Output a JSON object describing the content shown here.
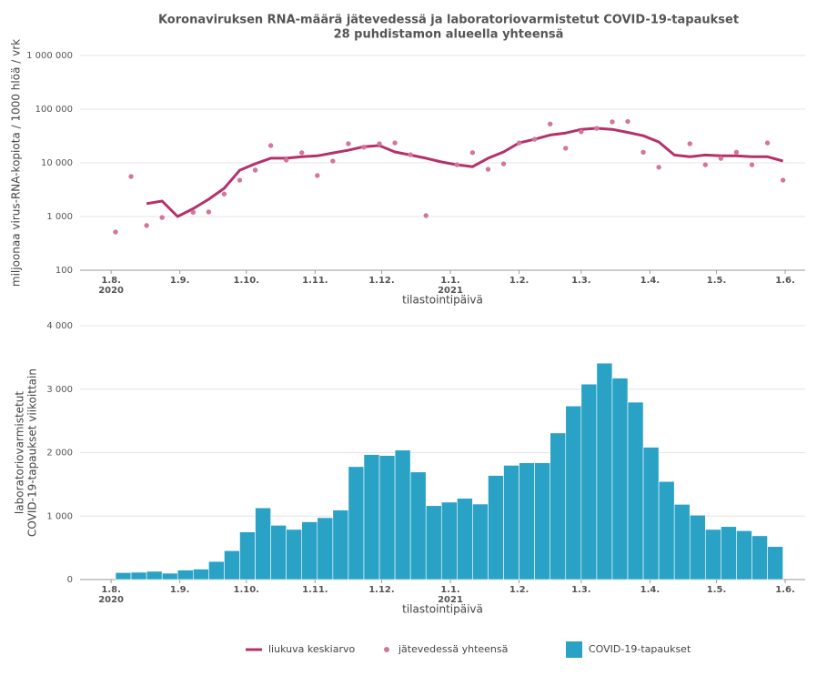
{
  "chart_data": [
    {
      "type": "line",
      "title": "Koronaviruksen RNA-määrä jätevedessä ja laboratoriovarmistetut COVID-19-tapaukset",
      "subtitle": "28 puhdistamon alueella yhteensä",
      "x_label": "tilastointipäivä",
      "y_label": "miljoonaa virus-RNA-kopiota / 1000 hlöä / vrk",
      "log_y": true,
      "grid": true,
      "xlim": [
        "2020-07-18",
        "2021-06-10"
      ],
      "xticks": [
        {
          "value": "2020-08-01",
          "label": "1.8."
        },
        {
          "value": "2020-09-01",
          "label": "1.9."
        },
        {
          "value": "2020-10-01",
          "label": "1.10."
        },
        {
          "value": "2020-11-01",
          "label": "1.11."
        },
        {
          "value": "2020-12-01",
          "label": "1.12."
        },
        {
          "value": "2021-01-01",
          "label": "1.1."
        },
        {
          "value": "2021-02-01",
          "label": "1.2."
        },
        {
          "value": "2021-03-01",
          "label": "1.3."
        },
        {
          "value": "2021-04-01",
          "label": "1.4."
        },
        {
          "value": "2021-05-01",
          "label": "1.5."
        },
        {
          "value": "2021-06-01",
          "label": "1.6."
        }
      ],
      "year_ticks": [
        {
          "value": "2020-08-01",
          "label": "2020"
        },
        {
          "value": "2021-01-01",
          "label": "2021"
        }
      ],
      "ylim": [
        100,
        1000000
      ],
      "yticks": [
        100,
        {
          "value": 1000,
          "label": "1 000"
        },
        {
          "value": 10000,
          "label": "10 000"
        },
        {
          "value": 100000,
          "label": "100 000"
        },
        {
          "value": 1000000,
          "label": "1 000 000"
        }
      ],
      "series": [
        {
          "name": "liukuva keskiarvo",
          "color": "#b5316a",
          "mode": "lines",
          "x": [
            "2020-08-17",
            "2020-08-24",
            "2020-08-31",
            "2020-09-07",
            "2020-09-14",
            "2020-09-21",
            "2020-09-28",
            "2020-10-05",
            "2020-10-12",
            "2020-10-19",
            "2020-10-26",
            "2020-11-02",
            "2020-11-09",
            "2020-11-16",
            "2020-11-23",
            "2020-11-30",
            "2020-12-07",
            "2020-12-14",
            "2020-12-21",
            "2020-12-28",
            "2021-01-04",
            "2021-01-11",
            "2021-01-18",
            "2021-01-25",
            "2021-02-01",
            "2021-02-08",
            "2021-02-15",
            "2021-02-22",
            "2021-03-01",
            "2021-03-08",
            "2021-03-15",
            "2021-03-22",
            "2021-03-29",
            "2021-04-05",
            "2021-04-12",
            "2021-04-19",
            "2021-04-26",
            "2021-05-03",
            "2021-05-10",
            "2021-05-17",
            "2021-05-24",
            "2021-05-31"
          ],
          "values": [
            1740,
            1940,
            1000,
            1400,
            2100,
            3350,
            7300,
            9600,
            12200,
            12200,
            13000,
            13500,
            15300,
            17200,
            20000,
            21000,
            16000,
            14000,
            12200,
            10400,
            9200,
            8500,
            12200,
            16000,
            23500,
            27500,
            33000,
            36000,
            42000,
            44000,
            42000,
            37000,
            32000,
            24500,
            14000,
            13000,
            14000,
            13500,
            13500,
            13000,
            13000,
            10800
          ]
        },
        {
          "name": "jätevedessä yhteensä",
          "color": "#d4769c",
          "mode": "markers",
          "x": [
            "2020-08-03",
            "2020-08-10",
            "2020-08-17",
            "2020-08-24",
            "2020-09-07",
            "2020-09-14",
            "2020-09-21",
            "2020-09-28",
            "2020-10-05",
            "2020-10-12",
            "2020-10-19",
            "2020-10-26",
            "2020-11-02",
            "2020-11-09",
            "2020-11-16",
            "2020-11-23",
            "2020-11-30",
            "2020-12-07",
            "2020-12-14",
            "2020-12-21",
            "2021-01-04",
            "2021-01-11",
            "2021-01-18",
            "2021-01-25",
            "2021-02-01",
            "2021-02-08",
            "2021-02-15",
            "2021-02-22",
            "2021-03-01",
            "2021-03-08",
            "2021-03-15",
            "2021-03-22",
            "2021-03-29",
            "2021-04-05",
            "2021-04-19",
            "2021-04-26",
            "2021-05-03",
            "2021-05-10",
            "2021-05-17",
            "2021-05-24",
            "2021-05-31"
          ],
          "values": [
            515,
            5570,
            680,
            960,
            1200,
            1220,
            2630,
            4760,
            7320,
            21000,
            11300,
            15500,
            5800,
            10800,
            22700,
            19600,
            22700,
            23500,
            14200,
            1040,
            9200,
            15500,
            7600,
            9600,
            23500,
            27500,
            53000,
            18700,
            38000,
            44000,
            58000,
            59000,
            15800,
            8300,
            22700,
            9200,
            12100,
            15800,
            9200,
            23500,
            4760
          ]
        }
      ]
    },
    {
      "type": "bar",
      "x_label": "tilastointipäivä",
      "y_label": [
        "laboratoriovarmistetut",
        "COVID-19-tapaukset viikoittain"
      ],
      "grid": true,
      "xlim": [
        "2020-07-18",
        "2021-06-10"
      ],
      "xticks": [
        {
          "value": "2020-08-01",
          "label": "1.8."
        },
        {
          "value": "2020-09-01",
          "label": "1.9."
        },
        {
          "value": "2020-10-01",
          "label": "1.10."
        },
        {
          "value": "2020-11-01",
          "label": "1.11."
        },
        {
          "value": "2020-12-01",
          "label": "1.12."
        },
        {
          "value": "2021-01-01",
          "label": "1.1."
        },
        {
          "value": "2021-02-01",
          "label": "1.2."
        },
        {
          "value": "2021-03-01",
          "label": "1.3."
        },
        {
          "value": "2021-04-01",
          "label": "1.4."
        },
        {
          "value": "2021-05-01",
          "label": "1.5."
        },
        {
          "value": "2021-06-01",
          "label": "1.6."
        }
      ],
      "year_ticks": [
        {
          "value": "2020-08-01",
          "label": "2020"
        },
        {
          "value": "2021-01-01",
          "label": "2021"
        }
      ],
      "ylim": [
        0,
        4000
      ],
      "yticks": [
        0,
        {
          "value": 1000,
          "label": "1 000"
        },
        {
          "value": 2000,
          "label": "2 000"
        },
        {
          "value": 3000,
          "label": "3 000"
        },
        {
          "value": 4000,
          "label": "4 000"
        }
      ],
      "series": [
        {
          "name": "COVID-19-tapaukset",
          "color": "#2aa2c6",
          "x": [
            "2020-08-03",
            "2020-08-10",
            "2020-08-17",
            "2020-08-24",
            "2020-08-31",
            "2020-09-07",
            "2020-09-14",
            "2020-09-21",
            "2020-09-28",
            "2020-10-05",
            "2020-10-12",
            "2020-10-19",
            "2020-10-26",
            "2020-11-02",
            "2020-11-09",
            "2020-11-16",
            "2020-11-23",
            "2020-11-30",
            "2020-12-07",
            "2020-12-14",
            "2020-12-21",
            "2020-12-28",
            "2021-01-04",
            "2021-01-11",
            "2021-01-18",
            "2021-01-25",
            "2021-02-01",
            "2021-02-08",
            "2021-02-15",
            "2021-02-22",
            "2021-03-01",
            "2021-03-08",
            "2021-03-15",
            "2021-03-22",
            "2021-03-29",
            "2021-04-05",
            "2021-04-12",
            "2021-04-19",
            "2021-04-26",
            "2021-05-03",
            "2021-05-10",
            "2021-05-17",
            "2021-05-24"
          ],
          "values": [
            110,
            115,
            130,
            100,
            150,
            165,
            285,
            455,
            750,
            1130,
            855,
            790,
            910,
            975,
            1095,
            1780,
            1970,
            1955,
            2040,
            1695,
            1165,
            1220,
            1280,
            1190,
            1640,
            1800,
            1840,
            1840,
            2310,
            2735,
            3080,
            3410,
            3175,
            2795,
            2085,
            1545,
            1185,
            1015,
            790,
            835,
            770,
            690,
            520
          ]
        }
      ]
    }
  ]
}
